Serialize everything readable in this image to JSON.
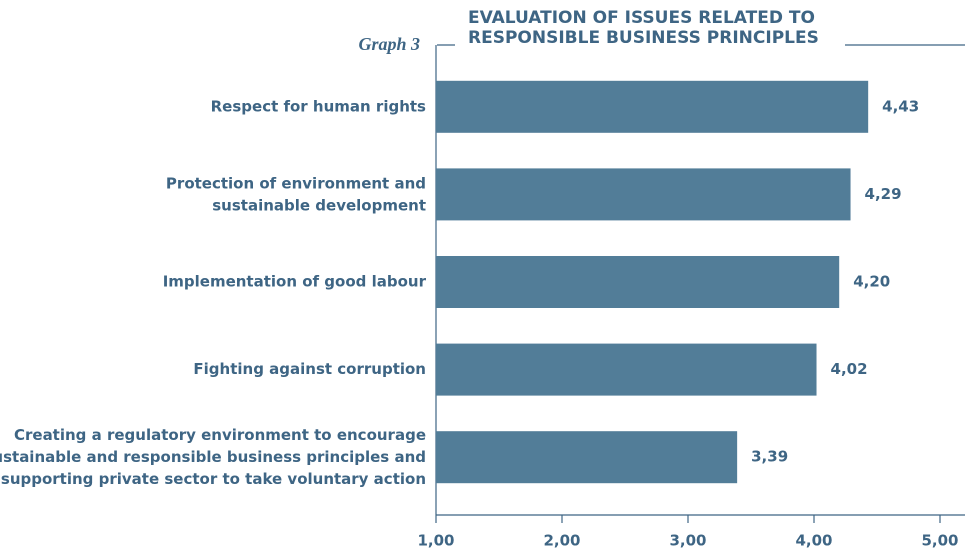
{
  "label": "Graph 3",
  "chart_data": {
    "type": "bar",
    "orientation": "horizontal",
    "title": "EVALUATION OF ISSUES RELATED TO\nRESPONSIBLE BUSINESS PRINCIPLES",
    "categories": [
      "Respect for human rights",
      "Protection of environment and\nsustainable development",
      "Implementation of good labour",
      "Fighting against corruption",
      "Creating a regulatory environment to encourage\nsustainable and responsible business principles and\nsupporting private sector to take voluntary action"
    ],
    "values": [
      4.43,
      4.29,
      4.2,
      4.02,
      3.39
    ],
    "value_labels": [
      "4,43",
      "4,29",
      "4,20",
      "4,02",
      "3,39"
    ],
    "color": "#527d98",
    "xlim": [
      1,
      5
    ],
    "xticks": [
      {
        "value": 1,
        "label": "1,00"
      },
      {
        "value": 2,
        "label": "2,00"
      },
      {
        "value": 3,
        "label": "3,00"
      },
      {
        "value": 4,
        "label": "4,00"
      },
      {
        "value": 5,
        "label": "5,00"
      }
    ],
    "grid": false
  }
}
